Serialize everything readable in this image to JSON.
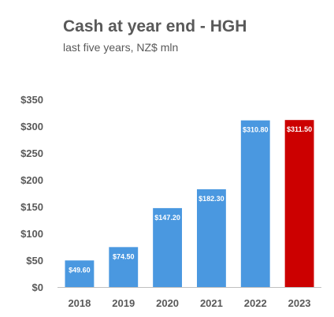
{
  "chart_data": {
    "type": "bar",
    "title": "Cash at year end - HGH",
    "subtitle": "last five years, NZ$ mln",
    "categories": [
      "2018",
      "2019",
      "2020",
      "2021",
      "2022",
      "2023"
    ],
    "values": [
      49.6,
      74.5,
      147.2,
      182.3,
      310.8,
      311.5
    ],
    "data_labels": [
      "$49.60",
      "$74.50",
      "$147.20",
      "$182.30",
      "$310.80",
      "$311.50"
    ],
    "y_ticks": [
      0,
      50,
      100,
      150,
      200,
      250,
      300,
      350
    ],
    "y_tick_labels": [
      "$0",
      "$50",
      "$100",
      "$150",
      "$200",
      "$250",
      "$300",
      "$350"
    ],
    "ylim": [
      0,
      350
    ],
    "xlabel": "",
    "ylabel": "",
    "grid": false,
    "legend": "none",
    "colors": {
      "default_bar": "#4A98E0",
      "highlight_bar": "#CC0000",
      "axis": "#BFBFBF",
      "text": "#595959"
    },
    "highlight_category": "2023"
  }
}
